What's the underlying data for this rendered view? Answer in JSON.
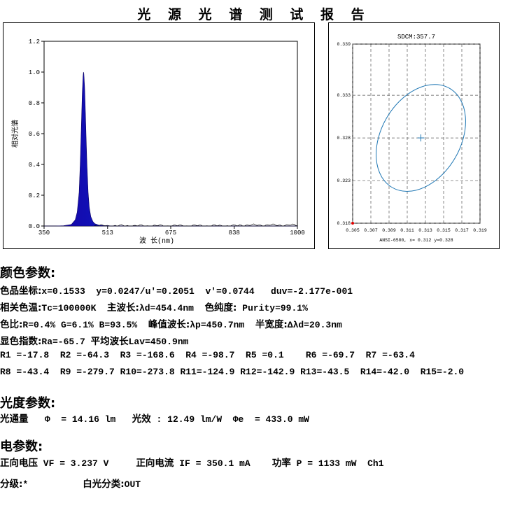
{
  "title": "光 源 光 谱 测 试 报 告",
  "chart_data": [
    {
      "type": "line",
      "title": "",
      "xlabel": "波 长(nm)",
      "ylabel": "相对光谱",
      "xlim": [
        350,
        1000
      ],
      "ylim": [
        0,
        1.2
      ],
      "x_ticks": [
        "350",
        "513",
        "675",
        "838",
        "1000"
      ],
      "y_ticks": [
        "0.0",
        "0.2",
        "0.4",
        "0.6",
        "0.8",
        "1.0",
        "1.2"
      ],
      "x": [
        350,
        380,
        400,
        420,
        430,
        435,
        440,
        443,
        446,
        448,
        450,
        451,
        452,
        454,
        456,
        458,
        460,
        463,
        466,
        470,
        475,
        480,
        490,
        500,
        520,
        560,
        600,
        700,
        800,
        900,
        1000
      ],
      "values": [
        0.0,
        0.0,
        0.002,
        0.01,
        0.04,
        0.09,
        0.22,
        0.42,
        0.68,
        0.86,
        0.97,
        1.0,
        0.99,
        0.9,
        0.74,
        0.56,
        0.4,
        0.22,
        0.12,
        0.06,
        0.03,
        0.015,
        0.006,
        0.003,
        0.001,
        0.0,
        0.0,
        0.0,
        0.0,
        0.0,
        0.0
      ]
    },
    {
      "type": "scatter",
      "title": "SDCM:357.7",
      "xlabel": "ANSI-6500, x= 0.312 y=0.328",
      "xlim": [
        0.305,
        0.319
      ],
      "ylim": [
        0.318,
        0.339
      ],
      "x_ticks": [
        "0.305",
        "0.307",
        "0.309",
        "0.311",
        "0.313",
        "0.315",
        "0.317",
        "0.319"
      ],
      "y_ticks": [
        "0.339",
        "0.333",
        "0.328",
        "0.323",
        "0.318"
      ],
      "grid": true,
      "center": {
        "x": 0.3125,
        "y": 0.328
      },
      "ellipse": {
        "cx": 0.3125,
        "cy": 0.328,
        "a": 0.0065,
        "b": 0.0045,
        "rotation_deg": -60
      },
      "ellipse_color": "#1f77b4"
    }
  ],
  "sections": {
    "color": "颜色参数:",
    "photometric": "光度参数:",
    "electrical": "电参数:"
  },
  "lines": {
    "l1_cn": "色品坐标:",
    "l1_val": "x=0.1533  y=0.0247/u'=0.2051  v'=0.0744   duv=-2.177e-001",
    "l2_cn1": "相关色温:",
    "l2_val1": "Tc=100000K  ",
    "l2_cn2": "主波长:",
    "l2_val2": "λd=454.4nm  ",
    "l2_cn3": "色纯度:",
    "l2_val3": " Purity=99.1%",
    "l3_cn1": "色比:",
    "l3_val1": "R=0.4% G=6.1% B=93.5%  ",
    "l3_cn2": "峰值波长:",
    "l3_val2": "λp=450.7nm  ",
    "l3_cn3": "半宽度:",
    "l3_val3": "Δλd=20.3nm",
    "l4_cn1": "显色指数:",
    "l4_val1": "Ra=-65.7 ",
    "l4_cn2": "平均波长",
    "l4_val2": "Lav=450.9nm",
    "l5": "R1 =-17.8  R2 =-64.3  R3 =-168.6  R4 =-98.7  R5 =0.1    R6 =-69.7  R7 =-63.4",
    "l6": "R8 =-43.4  R9 =-279.7 R10=-273.8 R11=-124.9 R12=-142.9 R13=-43.5  R14=-42.0  R15=-2.0",
    "l7_cn1": "光通量",
    "l7_val1": "   Φ  = 14.16 lm   ",
    "l7_cn2": "光效",
    "l7_val2": " : 12.49 lm/W  Φe  = 433.0 mW",
    "l8_cn1": "正向电压",
    "l8_val1": " VF = 3.237 V     ",
    "l8_cn2": "正向电流",
    "l8_val2": " IF = 350.1 mA    ",
    "l8_cn3": "功率",
    "l8_val3": " P = 1133 mW  Ch1",
    "l9_cn1": "分级:",
    "l9_val1": "*          ",
    "l9_cn2": "白光分类:",
    "l9_val2": "OUT"
  }
}
